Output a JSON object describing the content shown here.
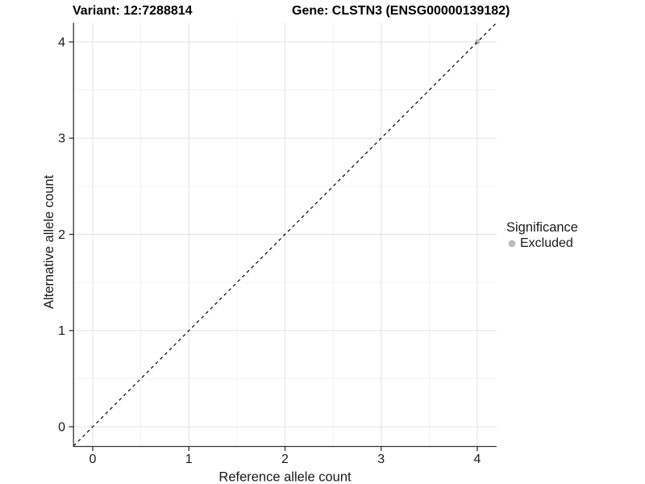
{
  "header": {
    "variant_title": "Variant: 12:7288814",
    "gene_title": "Gene: CLSTN3 (ENSG00000139182)"
  },
  "chart_data": {
    "type": "scatter",
    "title": "Variant: 12:7288814  |  Gene: CLSTN3 (ENSG00000139182)",
    "xlabel": "Reference allele count",
    "ylabel": "Alternative allele count",
    "xlim": [
      -0.2,
      4.2
    ],
    "ylim": [
      -0.2,
      4.2
    ],
    "x_ticks": [
      "0",
      "1",
      "2",
      "3",
      "4"
    ],
    "y_ticks": [
      "0",
      "1",
      "2",
      "3",
      "4"
    ],
    "grid": "major and minor gridlines, white background",
    "reference_line": {
      "equation": "y = x",
      "style": "dashed",
      "color": "#000000"
    },
    "legend": {
      "title": "Significance",
      "position": "right",
      "items": [
        {
          "label": "Excluded",
          "color": "#bdbdbd"
        }
      ]
    },
    "series": [
      {
        "name": "Excluded",
        "color": "#bdbdbd",
        "points": [
          {
            "x": 4,
            "y": 4
          }
        ]
      }
    ]
  },
  "colors": {
    "grid_major": "#e3e3e3",
    "grid_minor": "#f0f0f0",
    "axis_line": "#333333",
    "text": "#1a1a1a",
    "excluded_point": "#bdbdbd"
  }
}
